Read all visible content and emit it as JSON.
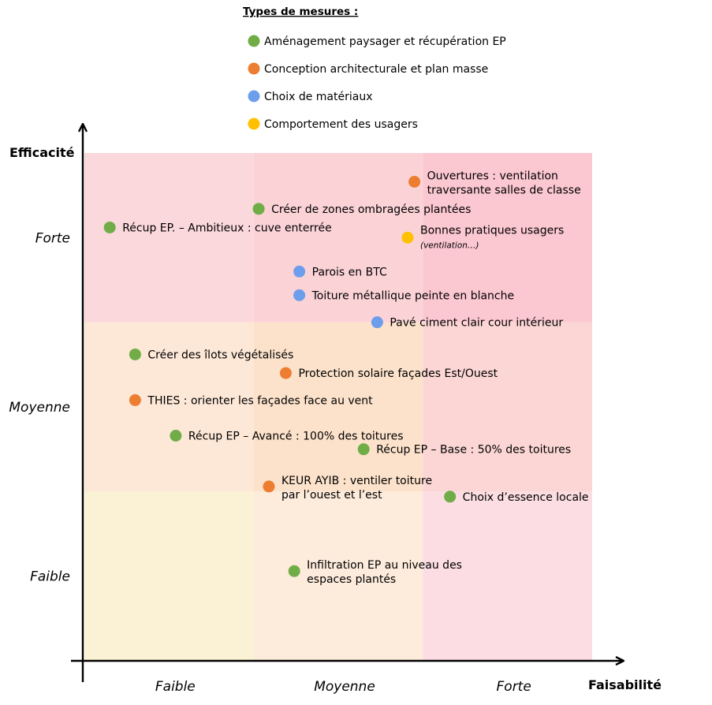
{
  "chart_data": {
    "type": "scatter",
    "legend": {
      "title": "Types de mesures :",
      "placement": "top-center",
      "entries": [
        {
          "key": "landscape",
          "label": "Aménagement paysager et récupération EP",
          "color": "#70ad47"
        },
        {
          "key": "architecture",
          "label": "Conception architecturale et plan masse",
          "color": "#ed7d31"
        },
        {
          "key": "materials",
          "label": "Choix de matériaux",
          "color": "#6d9eeb"
        },
        {
          "key": "behaviour",
          "label": "Comportement des usagers",
          "color": "#ffc000"
        }
      ]
    },
    "xlabel": "Faisabilité",
    "ylabel": "Efficacité",
    "x_categories": [
      "Faible",
      "Moyenne",
      "Forte"
    ],
    "y_categories": [
      "Faible",
      "Moyenne",
      "Forte"
    ],
    "xlim": [
      0,
      3
    ],
    "ylim": [
      0,
      3
    ],
    "zone_colors": [
      [
        "#fbf2d5",
        "#fdebdc",
        "#fbdde3"
      ],
      [
        "#fde8d8",
        "#fce2cb",
        "#fbd6d4"
      ],
      [
        "#fbd8db",
        "#fbd3d7",
        "#fbc7d1"
      ]
    ],
    "points": [
      {
        "lines": [
          "Ouvertures : ventilation",
          "traversante salles de classe"
        ],
        "type": "architecture",
        "x": 1.95,
        "y": 2.83
      },
      {
        "lines": [
          "Créer de zones ombragées plantées"
        ],
        "type": "landscape",
        "x": 1.03,
        "y": 2.67
      },
      {
        "lines": [
          "Récup EP. – Ambitieux : cuve enterrée"
        ],
        "type": "landscape",
        "x": 0.15,
        "y": 2.56
      },
      {
        "lines": [
          "Bonnes pratiques usagers"
        ],
        "sub": "(ventilation…)",
        "type": "behaviour",
        "x": 1.91,
        "y": 2.5
      },
      {
        "lines": [
          "Parois en BTC"
        ],
        "type": "materials",
        "x": 1.27,
        "y": 2.3
      },
      {
        "lines": [
          "Toiture métallique peinte en blanche"
        ],
        "type": "materials",
        "x": 1.27,
        "y": 2.16
      },
      {
        "lines": [
          "Pavé ciment clair cour intérieur"
        ],
        "type": "materials",
        "x": 1.73,
        "y": 2.0
      },
      {
        "lines": [
          "Créer des îlots végétalisés"
        ],
        "type": "landscape",
        "x": 0.3,
        "y": 1.81
      },
      {
        "lines": [
          "Protection solaire façades Est/Ouest"
        ],
        "type": "architecture",
        "x": 1.19,
        "y": 1.7
      },
      {
        "lines": [
          "THIES : orienter les façades face au vent"
        ],
        "type": "architecture",
        "x": 0.3,
        "y": 1.54
      },
      {
        "lines": [
          "Récup EP – Avancé : 100% des toitures"
        ],
        "type": "landscape",
        "x": 0.54,
        "y": 1.33
      },
      {
        "lines": [
          "Récup EP – Base :  50% des toitures"
        ],
        "type": "landscape",
        "x": 1.65,
        "y": 1.25
      },
      {
        "lines": [
          "KEUR AYIB : ventiler toiture",
          "par l’ouest et l’est"
        ],
        "type": "architecture",
        "x": 1.09,
        "y": 1.03
      },
      {
        "lines": [
          "Choix d’essence locale"
        ],
        "type": "landscape",
        "x": 2.16,
        "y": 0.97
      },
      {
        "lines": [
          "Infiltration EP au niveau des",
          "espaces plantés"
        ],
        "type": "landscape",
        "x": 1.24,
        "y": 0.53
      }
    ]
  }
}
